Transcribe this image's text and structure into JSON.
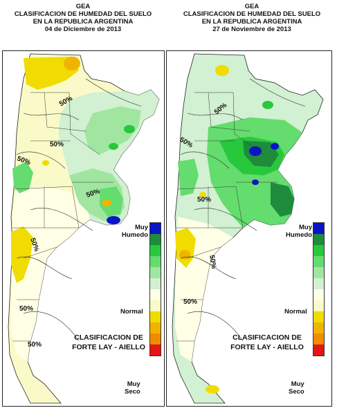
{
  "maps": [
    {
      "org": "GEA",
      "title1": "CLASIFICACION DE HUMEDAD DEL SUELO",
      "title2": "EN LA REPUBLICA ARGENTINA",
      "date": "04 de Diciembre de 2013",
      "method1": "CLASIFICACION DE",
      "method2": "FORTE LAY - AIELLO",
      "contour_label": "50%"
    },
    {
      "org": "GEA",
      "title1": "CLASIFICACION DE HUMEDAD DEL SUELO",
      "title2": "EN LA REPUBLICA ARGENTINA",
      "date": "27 de Noviembre de 2013",
      "method1": "CLASIFICACION DE",
      "method2": "FORTE LAY - AIELLO",
      "contour_label": "50%"
    }
  ],
  "legend": {
    "top_label_1": "Muy",
    "top_label_2": "Humedo",
    "mid_label": "Normal",
    "bottom_label_1": "Muy",
    "bottom_label_2": "Seco",
    "classes": [
      "#0a14c8",
      "#1e8c3c",
      "#28c83c",
      "#64dc6e",
      "#a0e6a0",
      "#d2f0d2",
      "#ffffe6",
      "#fafac8",
      "#f0dc00",
      "#f0b400",
      "#f08c00",
      "#e61414"
    ]
  }
}
